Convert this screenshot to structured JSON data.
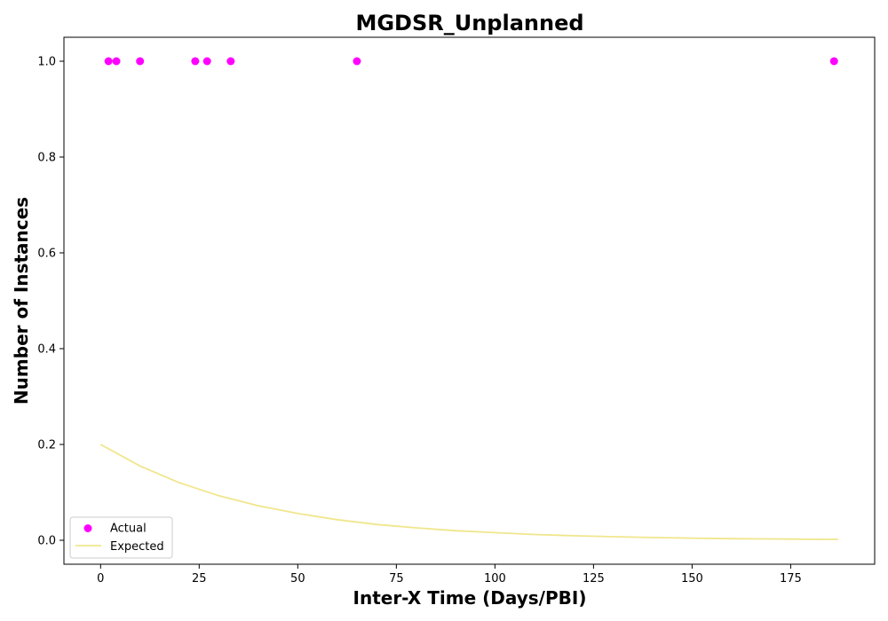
{
  "chart_data": {
    "type": "scatter",
    "title": "MGDSR_Unplanned",
    "xlabel": "Inter-X Time (Days/PBI)",
    "ylabel": "Number of Instances",
    "xlim": [
      -9.3,
      196.3
    ],
    "ylim": [
      -0.05,
      1.05
    ],
    "xticks": [
      0,
      25,
      50,
      75,
      100,
      125,
      150,
      175
    ],
    "yticks": [
      0.0,
      0.2,
      0.4,
      0.6,
      0.8,
      1.0
    ],
    "xtick_labels": [
      "0",
      "25",
      "50",
      "75",
      "100",
      "125",
      "150",
      "175"
    ],
    "ytick_labels": [
      "0.0",
      "0.2",
      "0.4",
      "0.6",
      "0.8",
      "1.0"
    ],
    "grid": false,
    "legend_position": "lower-left",
    "series": [
      {
        "name": "Actual",
        "kind": "scatter",
        "color": "#ff00ff",
        "x": [
          2,
          4,
          10,
          24,
          27,
          33,
          65,
          186
        ],
        "y": [
          1,
          1,
          1,
          1,
          1,
          1,
          1,
          1
        ]
      },
      {
        "name": "Expected",
        "kind": "line",
        "color": "#f0e68c",
        "x": [
          0,
          10,
          20,
          30,
          40,
          50,
          60,
          70,
          80,
          90,
          100,
          110,
          120,
          130,
          140,
          150,
          160,
          170,
          180,
          187
        ],
        "y": [
          0.2,
          0.155,
          0.12,
          0.093,
          0.072,
          0.056,
          0.043,
          0.033,
          0.026,
          0.02,
          0.016,
          0.012,
          0.0095,
          0.0074,
          0.0057,
          0.0044,
          0.0034,
          0.0027,
          0.0021,
          0.0018
        ]
      }
    ]
  }
}
